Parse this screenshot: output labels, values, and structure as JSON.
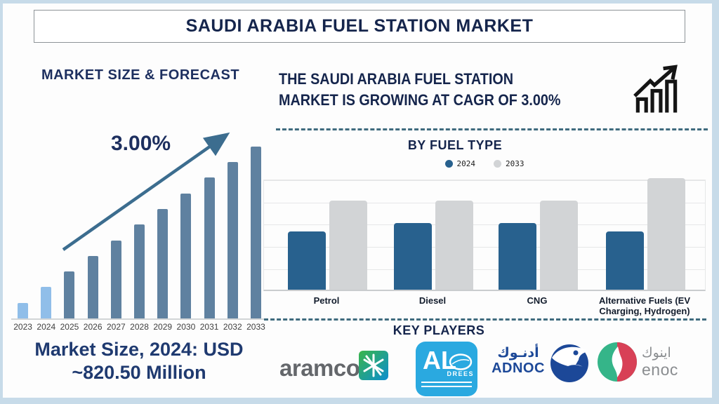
{
  "header": {
    "title": "SAUDI ARABIA FUEL STATION MARKET"
  },
  "left_panel": {
    "market_size_line1": "Market Size, 2024: USD",
    "market_size_line2": "~820.50 Million"
  },
  "right_panel": {
    "headline_line1": "THE SAUDI ARABIA FUEL STATION",
    "headline_line2": "MARKET IS GROWING AT CAGR OF 3.00%",
    "key_players_title": "KEY PLAYERS",
    "key_players": [
      "aramco",
      "Aldrees",
      "ADNOC",
      "ENOC"
    ]
  },
  "logos": {
    "aramco_text": "aramco",
    "aldrees_al": "AL",
    "aldrees_drees": "DREES",
    "adnoc_arabic": "أدنـوك",
    "adnoc_latin": "ADNOC",
    "enoc_arabic": "اينوك",
    "enoc_latin": "enoc"
  },
  "colors": {
    "navy": "#15254c",
    "forecast_bar": "#5f81a0",
    "forecast_bar_highlight": "#90bee9",
    "arrow": "#3c6d8f",
    "dashed_line": "#3f6b7e",
    "fuel_bar_2024": "#28618E",
    "fuel_bar_2033": "#cccecf",
    "frame": "#c7dbe9",
    "aramco_gray": "#64676b",
    "aldrees_blue": "#2aa9e0",
    "adnoc_blue": "#1c4898",
    "enoc_green": "#35b589",
    "enoc_red": "#d84056"
  },
  "chart_data": [
    {
      "type": "bar",
      "title": "MARKET SIZE & FORECAST",
      "categories": [
        "2023",
        "2024",
        "2025",
        "2026",
        "2027",
        "2028",
        "2029",
        "2030",
        "2031",
        "2032",
        "2033"
      ],
      "values": [
        1,
        2,
        3,
        4,
        5,
        6,
        7,
        8,
        9,
        10,
        11
      ],
      "value_note": "stylized relative heights; no y-axis shown; anchor: 2024 = USD ~820.50 Million, CAGR 3.00%",
      "annotation": "3.00%",
      "highlight_first_n": 2,
      "xlabel": "",
      "ylabel": "",
      "grid": false,
      "legend": false
    },
    {
      "type": "bar",
      "title": "BY FUEL TYPE",
      "categories": [
        "Petrol",
        "Diesel",
        "CNG",
        "Alternative Fuels (EV Charging, Hydrogen)"
      ],
      "series": [
        {
          "name": "2024",
          "color": "#28618E",
          "values": [
            2.6,
            3,
            3,
            2.6
          ]
        },
        {
          "name": "2033",
          "color": "#d2d4d6",
          "values": [
            4,
            4,
            4,
            5
          ]
        }
      ],
      "value_note": "no y-axis labels; values in gridline units (5 gridline intervals)",
      "ylim": [
        0,
        5
      ],
      "grid": true,
      "legend_position": "top"
    }
  ]
}
